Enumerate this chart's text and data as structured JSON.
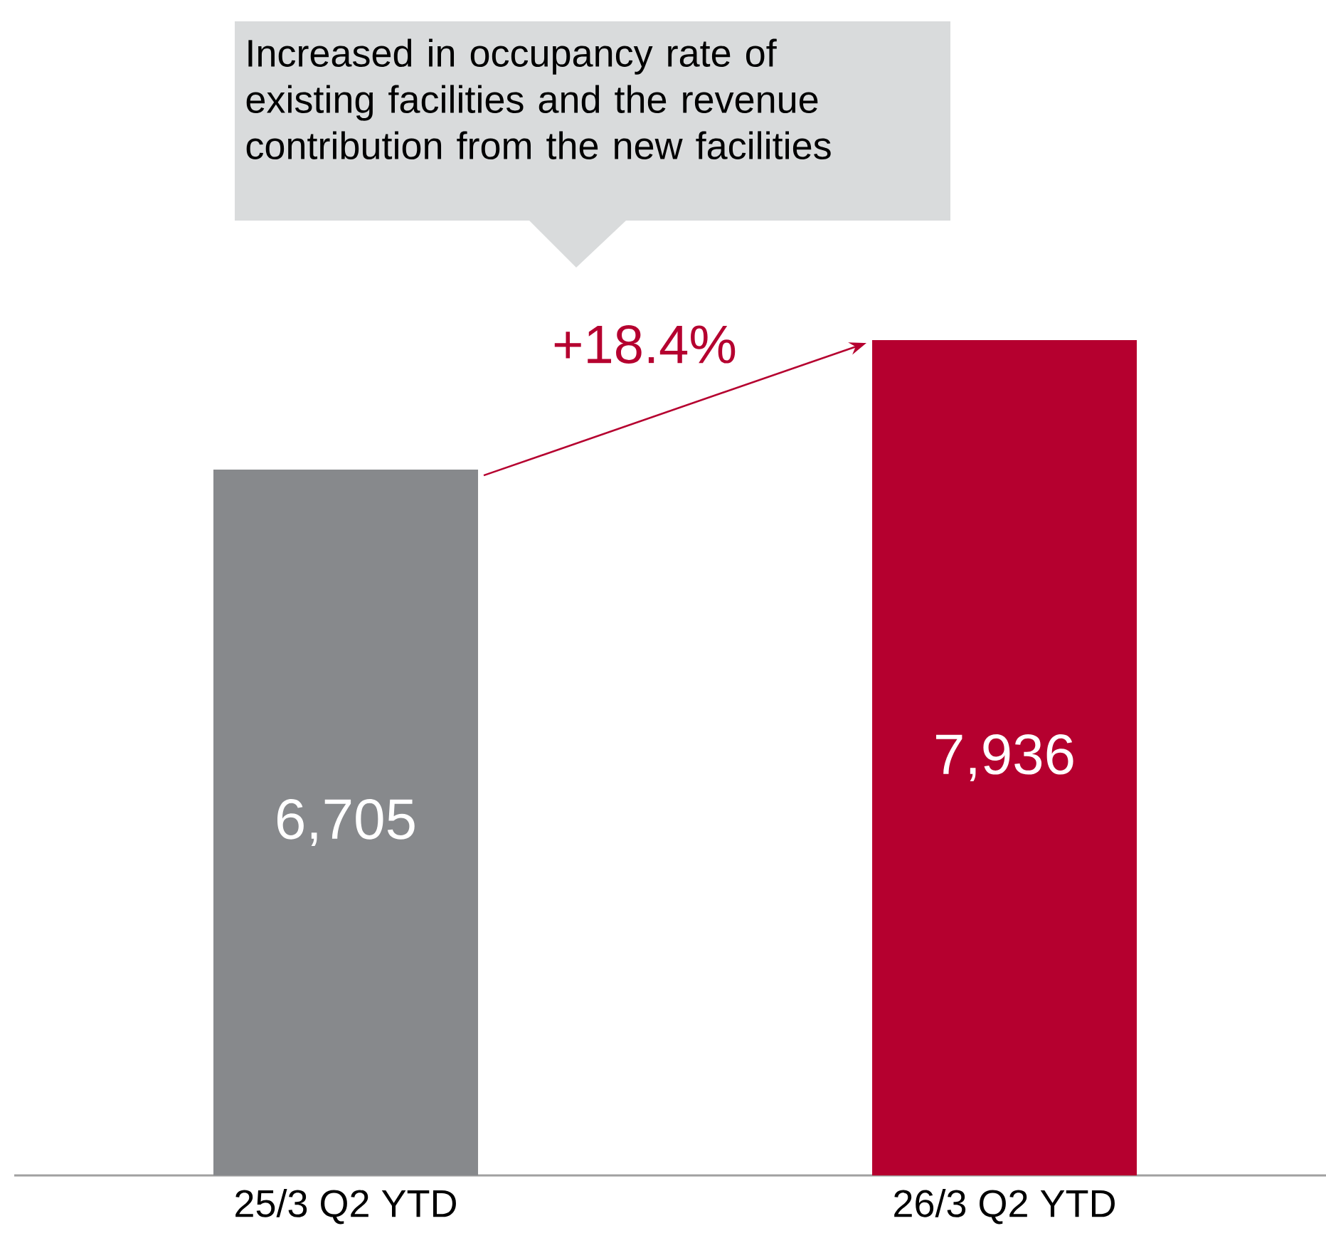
{
  "chart_data": {
    "type": "bar",
    "categories": [
      "25/3 Q2 YTD",
      "26/3 Q2 YTD"
    ],
    "values": [
      6705,
      7936
    ],
    "value_labels": [
      "6,705",
      "7,936"
    ],
    "colors": [
      "#87898c",
      "#b5002f"
    ],
    "annotations": [
      "Increased in occupancy rate of existing facilities and the revenue contribution from the new facilities",
      "+18.4%"
    ]
  }
}
